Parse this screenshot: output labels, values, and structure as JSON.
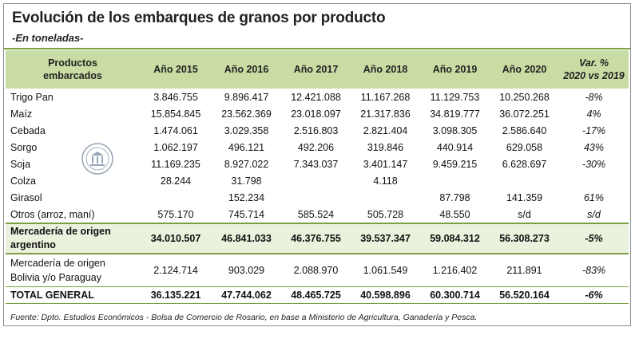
{
  "title": "Evolución de los embarques de granos por producto",
  "subtitle": "-En toneladas-",
  "source": "Fuente: Dpto. Estudios Económicos - Bolsa de Comercio de Rosario, en base a Ministerio de Agricultura, Ganadería y Pesca.",
  "chart_data": {
    "type": "table",
    "title": "Evolución de los embarques de granos por producto",
    "subtitle": "-En toneladas-",
    "headers": {
      "product_line1": "Productos",
      "product_line2": "embarcados",
      "years": [
        "Año 2015",
        "Año 2016",
        "Año 2017",
        "Año 2018",
        "Año 2019",
        "Año 2020"
      ],
      "var_line1": "Var. %",
      "var_line2": "2020 vs 2019"
    },
    "rows": [
      {
        "label": "Trigo Pan",
        "values": [
          "3.846.755",
          "9.896.417",
          "12.421.088",
          "11.167.268",
          "11.129.753",
          "10.250.268"
        ],
        "var": "-8%"
      },
      {
        "label": "Maíz",
        "values": [
          "15.854.845",
          "23.562.369",
          "23.018.097",
          "21.317.836",
          "34.819.777",
          "36.072.251"
        ],
        "var": "4%"
      },
      {
        "label": "Cebada",
        "values": [
          "1.474.061",
          "3.029.358",
          "2.516.803",
          "2.821.404",
          "3.098.305",
          "2.586.640"
        ],
        "var": "-17%"
      },
      {
        "label": "Sorgo",
        "values": [
          "1.062.197",
          "496.121",
          "492.206",
          "319.846",
          "440.914",
          "629.058"
        ],
        "var": "43%"
      },
      {
        "label": "Soja",
        "values": [
          "11.169.235",
          "8.927.022",
          "7.343.037",
          "3.401.147",
          "9.459.215",
          "6.628.697"
        ],
        "var": "-30%"
      },
      {
        "label": "Colza",
        "values": [
          "28.244",
          "31.798",
          "",
          "4.118",
          "",
          ""
        ],
        "var": ""
      },
      {
        "label": "Girasol",
        "values": [
          "",
          "152.234",
          "",
          "",
          "87.798",
          "141.359"
        ],
        "var": "61%"
      },
      {
        "label": "Otros (arroz, maní)",
        "values": [
          "575.170",
          "745.714",
          "585.524",
          "505.728",
          "48.550",
          "s/d"
        ],
        "var": "s/d"
      }
    ],
    "subtotal_argentino": {
      "label_line1": "Mercadería de origen",
      "label_line2": "argentino",
      "values": [
        "34.010.507",
        "46.841.033",
        "46.376.755",
        "39.537.347",
        "59.084.312",
        "56.308.273"
      ],
      "var": "-5%"
    },
    "subtotal_bolivia_paraguay": {
      "label_line1": "Mercadería de origen",
      "label_line2": "Bolivia y/o Paraguay",
      "values": [
        "2.124.714",
        "903.029",
        "2.088.970",
        "1.061.549",
        "1.216.402",
        "211.891"
      ],
      "var": "-83%"
    },
    "total": {
      "label": "TOTAL GENERAL",
      "values": [
        "36.135.221",
        "47.744.062",
        "48.465.725",
        "40.598.896",
        "60.300.714",
        "56.520.164"
      ],
      "var": "-6%"
    }
  },
  "colors": {
    "header_bg": "#c9dca4",
    "subtotal_bg": "#eaf1dd",
    "rule": "#7aa040"
  },
  "seal_icon": "institution-seal-icon"
}
